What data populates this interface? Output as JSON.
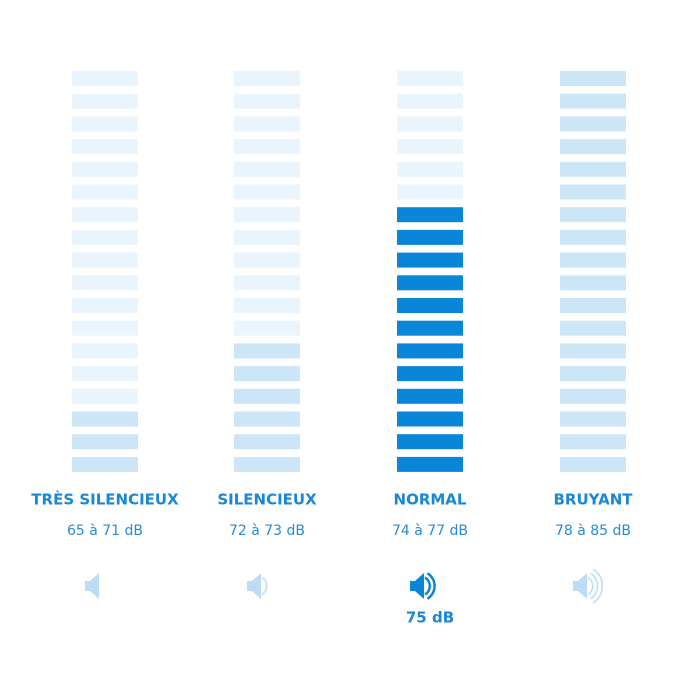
{
  "segments": 18,
  "selected": 2,
  "columns": [
    {
      "label": "TRÈS SILENCIEUX",
      "range": "65 à 71 dB",
      "level": 3
    },
    {
      "label": "SILENCIEUX",
      "range": "72 à 73 dB",
      "level": 6
    },
    {
      "label": "NORMAL",
      "range": "74 à 77 dB",
      "level": 12
    },
    {
      "label": "BRUYANT",
      "range": "78 à 85 dB",
      "level": 18
    }
  ],
  "current": "75 dB"
}
